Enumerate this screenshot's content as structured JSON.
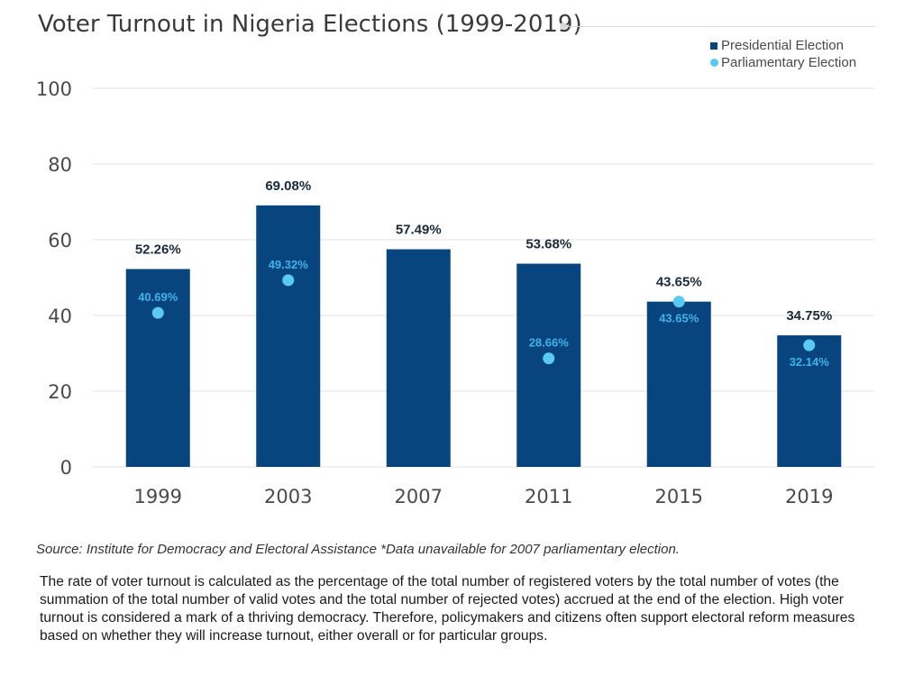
{
  "title": "Voter Turnout in Nigeria Elections (1999-2019)",
  "legend": {
    "presidential": "Presidential Election",
    "parliamentary": "Parliamentary Election"
  },
  "colors": {
    "presidential_bar": "#08457e",
    "parliamentary_dot": "#5bcaf2",
    "parliamentary_label": "#3fb3ea",
    "bar_label": "#1a2a3a",
    "gridline": "#e0e0e0",
    "axis_text": "#4a4a4a"
  },
  "chart_data": {
    "type": "bar",
    "categories": [
      "1999",
      "2003",
      "2007",
      "2011",
      "2015",
      "2019"
    ],
    "series": [
      {
        "name": "Presidential Election",
        "kind": "bar",
        "values": [
          52.26,
          69.08,
          57.49,
          53.68,
          43.65,
          34.75
        ],
        "labels": [
          "52.26%",
          "69.08%",
          "57.49%",
          "53.68%",
          "43.65%",
          "34.75%"
        ]
      },
      {
        "name": "Parliamentary Election",
        "kind": "point",
        "values": [
          40.69,
          49.32,
          null,
          28.66,
          43.65,
          32.14
        ],
        "labels": [
          "40.69%",
          "49.32%",
          null,
          "28.66%",
          "43.65%",
          "32.14%"
        ]
      }
    ],
    "ylim": [
      0,
      100
    ],
    "yticks": [
      0,
      20,
      40,
      60,
      80,
      100
    ],
    "grid": true,
    "legend_position": "top-right"
  },
  "source": "Source: Institute for Democracy and Electoral Assistance  *Data unavailable for 2007 parliamentary election.",
  "description": "The rate of voter turnout is calculated as the percentage of the total number of registered voters by the total number of votes (the summation of the total number of valid votes and the total number of rejected votes) accrued at the end of the election. High voter turnout is considered a mark of a thriving democracy. Therefore, policymakers and citizens often support electoral reform measures based on whether they will increase turnout, either overall or for particular groups."
}
